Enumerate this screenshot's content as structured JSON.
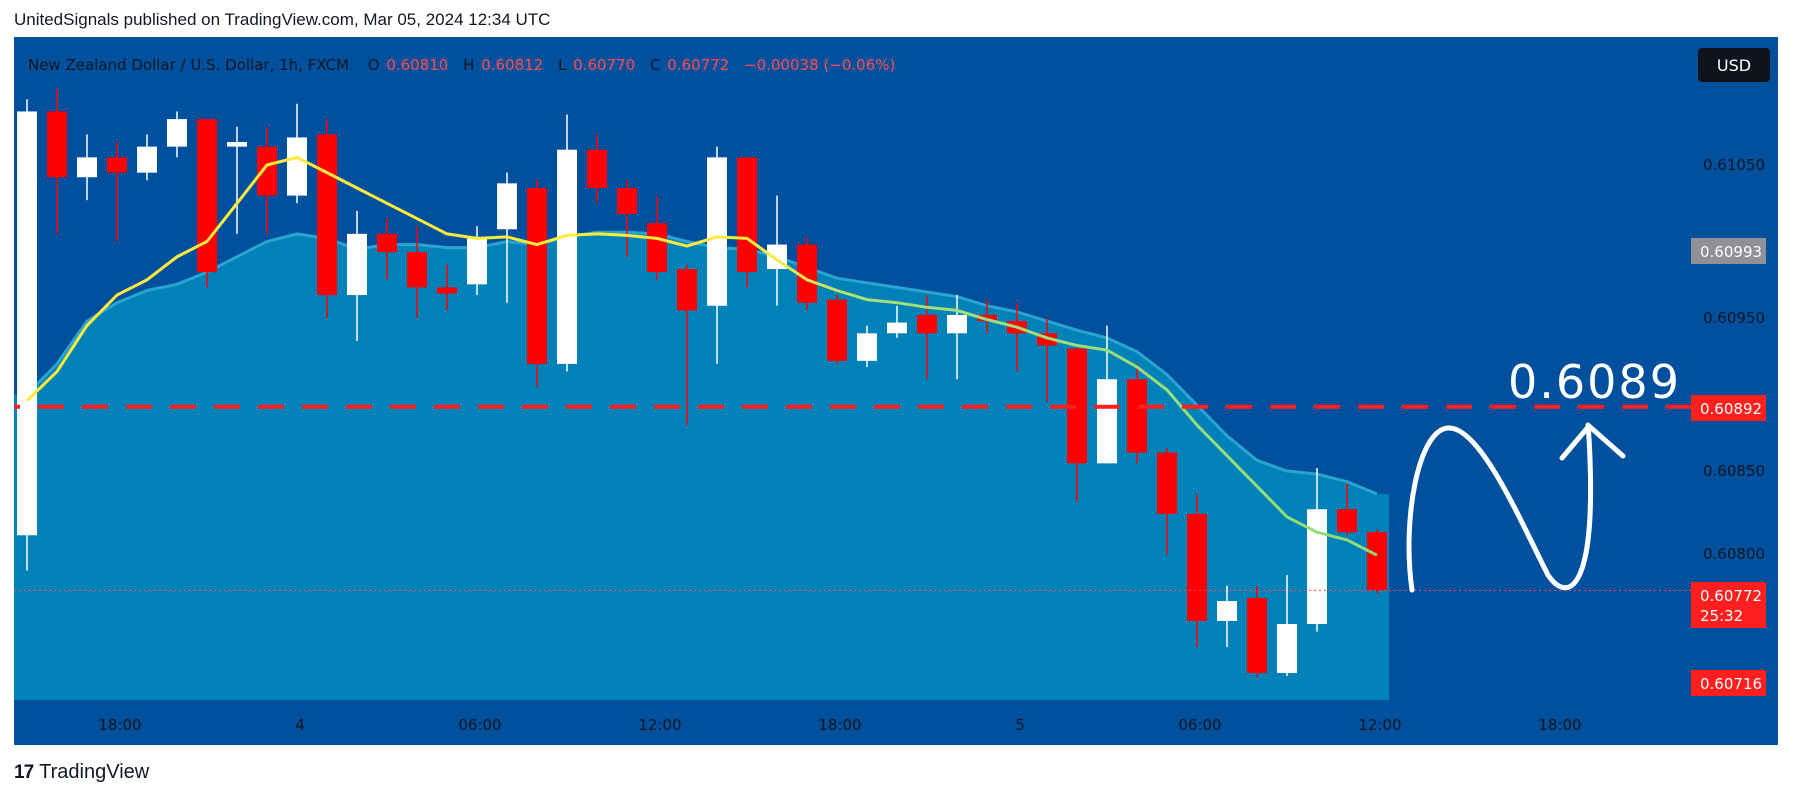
{
  "header": {
    "published": "UnitedSignals published on TradingView.com, Mar 05, 2024 12:34 UTC"
  },
  "footer": {
    "brand": "TradingView"
  },
  "colors": {
    "background": "#00509e",
    "area_fill": "#0081b7",
    "ema": "#ffeb3b",
    "bull": "#ffffff",
    "bear": "#ff0000",
    "level": "#ff1f1f"
  },
  "chart_data": {
    "type": "candlestick",
    "symbol": "New Zealand Dollar / U.S. Dollar, 1h, FXCM",
    "ohlc": {
      "o_label": "O",
      "o": "0.60810",
      "h_label": "H",
      "h": "0.60812",
      "l_label": "L",
      "l": "0.60770",
      "c_label": "C",
      "c": "0.60772",
      "change": "−0.00038 (−0.06%)"
    },
    "currency": "USD",
    "y_axis": {
      "range": [
        0.607,
        0.6113
      ],
      "ticks": [
        "0.61050",
        "0.60950",
        "0.60850",
        "0.60800"
      ]
    },
    "price_tags": {
      "prev_close": "0.60993",
      "level": "0.60892",
      "current": "0.60772",
      "countdown": "25:32",
      "low": "0.60716"
    },
    "x_ticks": [
      "18:00",
      "4",
      "06:00",
      "12:00",
      "18:00",
      "5",
      "06:00",
      "12:00",
      "18:00"
    ],
    "level_value": 0.60892,
    "level_annotation": "0.6089",
    "candles": [
      [
        0.60808,
        0.61093,
        0.60785,
        0.61085
      ],
      [
        0.61085,
        0.611,
        0.61005,
        0.61042
      ],
      [
        0.61042,
        0.6107,
        0.61027,
        0.61055
      ],
      [
        0.61055,
        0.61065,
        0.61,
        0.61045
      ],
      [
        0.61045,
        0.6107,
        0.6104,
        0.61062
      ],
      [
        0.61062,
        0.61085,
        0.61055,
        0.6108
      ],
      [
        0.6108,
        0.6108,
        0.6097,
        0.6098
      ],
      [
        0.61062,
        0.61075,
        0.61005,
        0.61065
      ],
      [
        0.61062,
        0.61075,
        0.61005,
        0.6103
      ],
      [
        0.6103,
        0.6109,
        0.61025,
        0.61068
      ],
      [
        0.6107,
        0.6108,
        0.6095,
        0.60965
      ],
      [
        0.60965,
        0.6102,
        0.60935,
        0.61005
      ],
      [
        0.61005,
        0.61015,
        0.60975,
        0.60993
      ],
      [
        0.60993,
        0.6101,
        0.6095,
        0.6097
      ],
      [
        0.6097,
        0.60985,
        0.60955,
        0.60966
      ],
      [
        0.60972,
        0.6101,
        0.60965,
        0.61003
      ],
      [
        0.61008,
        0.61045,
        0.6096,
        0.61038
      ],
      [
        0.61035,
        0.6104,
        0.60905,
        0.6092
      ],
      [
        0.6092,
        0.61083,
        0.60915,
        0.6106
      ],
      [
        0.6106,
        0.6107,
        0.61025,
        0.61035
      ],
      [
        0.61035,
        0.6104,
        0.6099,
        0.61018
      ],
      [
        0.61012,
        0.6103,
        0.60975,
        0.6098
      ],
      [
        0.60982,
        0.60985,
        0.6088,
        0.60955
      ],
      [
        0.60958,
        0.61062,
        0.6092,
        0.61055
      ],
      [
        0.61055,
        0.61055,
        0.6097,
        0.6098
      ],
      [
        0.60982,
        0.6103,
        0.60958,
        0.60998
      ],
      [
        0.60998,
        0.61003,
        0.60955,
        0.6096
      ],
      [
        0.60962,
        0.60965,
        0.6092,
        0.60922
      ],
      [
        0.60922,
        0.60945,
        0.60918,
        0.6094
      ],
      [
        0.6094,
        0.60958,
        0.60937,
        0.60947
      ],
      [
        0.60952,
        0.60965,
        0.6091,
        0.6094
      ],
      [
        0.6094,
        0.60965,
        0.6091,
        0.60952
      ],
      [
        0.60952,
        0.60962,
        0.6094,
        0.60948
      ],
      [
        0.60948,
        0.6096,
        0.60915,
        0.6094
      ],
      [
        0.6094,
        0.6095,
        0.60895,
        0.60932
      ],
      [
        0.6093,
        0.60932,
        0.6083,
        0.60855
      ],
      [
        0.60855,
        0.60945,
        0.60855,
        0.6091
      ],
      [
        0.6091,
        0.6092,
        0.60855,
        0.60862
      ],
      [
        0.60862,
        0.60865,
        0.60795,
        0.60822
      ],
      [
        0.60822,
        0.60835,
        0.60735,
        0.60752
      ],
      [
        0.60752,
        0.60775,
        0.60735,
        0.60765
      ],
      [
        0.60767,
        0.60775,
        0.60715,
        0.60718
      ],
      [
        0.60718,
        0.60782,
        0.60716,
        0.6075
      ],
      [
        0.6075,
        0.60852,
        0.60745,
        0.60825
      ],
      [
        0.60825,
        0.60842,
        0.60808,
        0.6081
      ],
      [
        0.6081,
        0.60812,
        0.6077,
        0.60772
      ]
    ],
    "ema": [
      0.60896,
      0.60915,
      0.60945,
      0.60965,
      0.60975,
      0.6099,
      0.61,
      0.61025,
      0.6105,
      0.61055,
      0.61045,
      0.61035,
      0.61025,
      0.61015,
      0.61005,
      0.61002,
      0.61003,
      0.60998,
      0.61004,
      0.61005,
      0.61004,
      0.61002,
      0.60997,
      0.61003,
      0.61002,
      0.60988,
      0.60975,
      0.60968,
      0.60962,
      0.6096,
      0.60957,
      0.60955,
      0.60949,
      0.60944,
      0.60937,
      0.60932,
      0.60929,
      0.60918,
      0.60903,
      0.6088,
      0.6086,
      0.6084,
      0.6082,
      0.6081,
      0.60805,
      0.60795
    ],
    "area_upper": [
      0.609,
      0.6092,
      0.60948,
      0.6096,
      0.60968,
      0.60972,
      0.6098,
      0.6099,
      0.61,
      0.61005,
      0.61002,
      0.60995,
      0.60998,
      0.60998,
      0.60996,
      0.60996,
      0.61,
      0.60998,
      0.61003,
      0.61006,
      0.61006,
      0.61005,
      0.61,
      0.60996,
      0.60995,
      0.6099,
      0.60983,
      0.60976,
      0.60973,
      0.6097,
      0.60967,
      0.60964,
      0.60958,
      0.60954,
      0.60948,
      0.60942,
      0.60937,
      0.60928,
      0.60913,
      0.60893,
      0.60873,
      0.60857,
      0.6085,
      0.60848,
      0.60843,
      0.60835
    ]
  }
}
